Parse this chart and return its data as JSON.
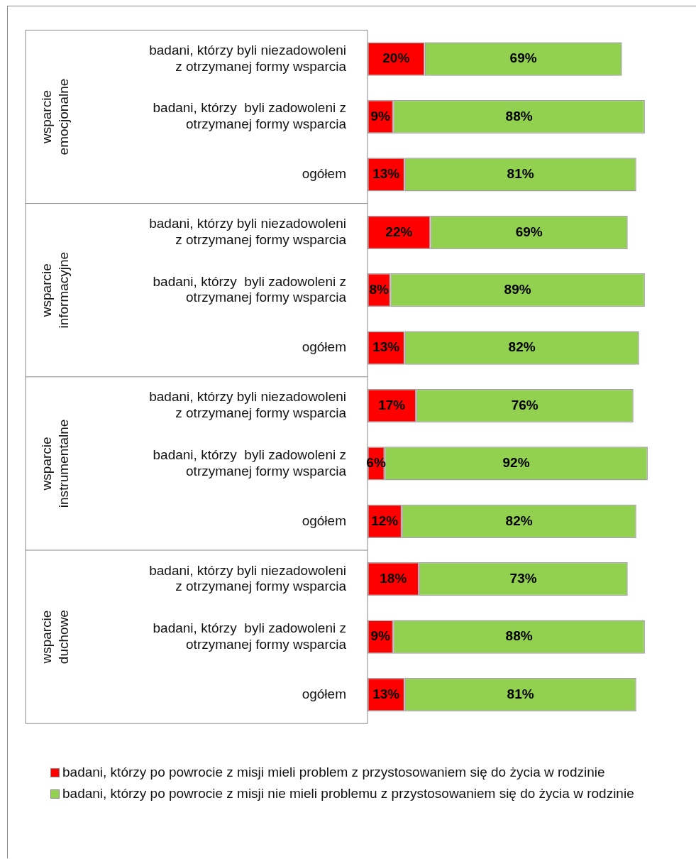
{
  "chart_data": {
    "type": "bar",
    "orientation": "horizontal",
    "stacked": true,
    "legend": "bottom",
    "categories": [
      "badani, którzy byli niezadowoleni z otrzymanej formy wsparcia",
      "badani, którzy  byli zadowoleni z otrzymanej formy wsparcia",
      "ogółem",
      "badani, którzy byli niezadowoleni z otrzymanej formy wsparcia",
      "badani, którzy  byli zadowoleni z otrzymanej formy wsparcia",
      "ogółem",
      "badani, którzy byli niezadowoleni z otrzymanej formy wsparcia",
      "badani, którzy  byli zadowoleni z otrzymanej formy wsparcia",
      "ogółem",
      "badani, którzy byli niezadowoleni z otrzymanej formy wsparcia",
      "badani, którzy  byli zadowoleni z otrzymanej formy wsparcia",
      "ogółem"
    ],
    "series": [
      {
        "name": "badani, którzy po powrocie z misji mieli problem z przystosowaniem się do życia w rodzinie",
        "color": "#ff0000",
        "values": [
          20,
          9,
          13,
          22,
          8,
          13,
          17,
          6,
          12,
          18,
          9,
          13
        ],
        "value_labels": [
          "20%",
          "9%",
          "13%",
          "22%",
          "8%",
          "13%",
          "17%",
          "6%",
          "12%",
          "18%",
          "9%",
          "13%"
        ]
      },
      {
        "name": "badani, którzy po powrocie z misji nie mieli problemu z przystosowaniem się do życia w rodzinie",
        "color": "#92d050",
        "values": [
          69,
          88,
          81,
          69,
          89,
          82,
          76,
          92,
          82,
          73,
          88,
          81
        ],
        "value_labels": [
          "69%",
          "88%",
          "81%",
          "69%",
          "89%",
          "82%",
          "76%",
          "92%",
          "82%",
          "73%",
          "88%",
          "81%"
        ]
      }
    ],
    "annotations": [
      "wsparcie emocjonalne",
      "wsparcie informacyjne",
      "wsparcie instrumentalne",
      "wsparcie duchowe"
    ]
  }
}
